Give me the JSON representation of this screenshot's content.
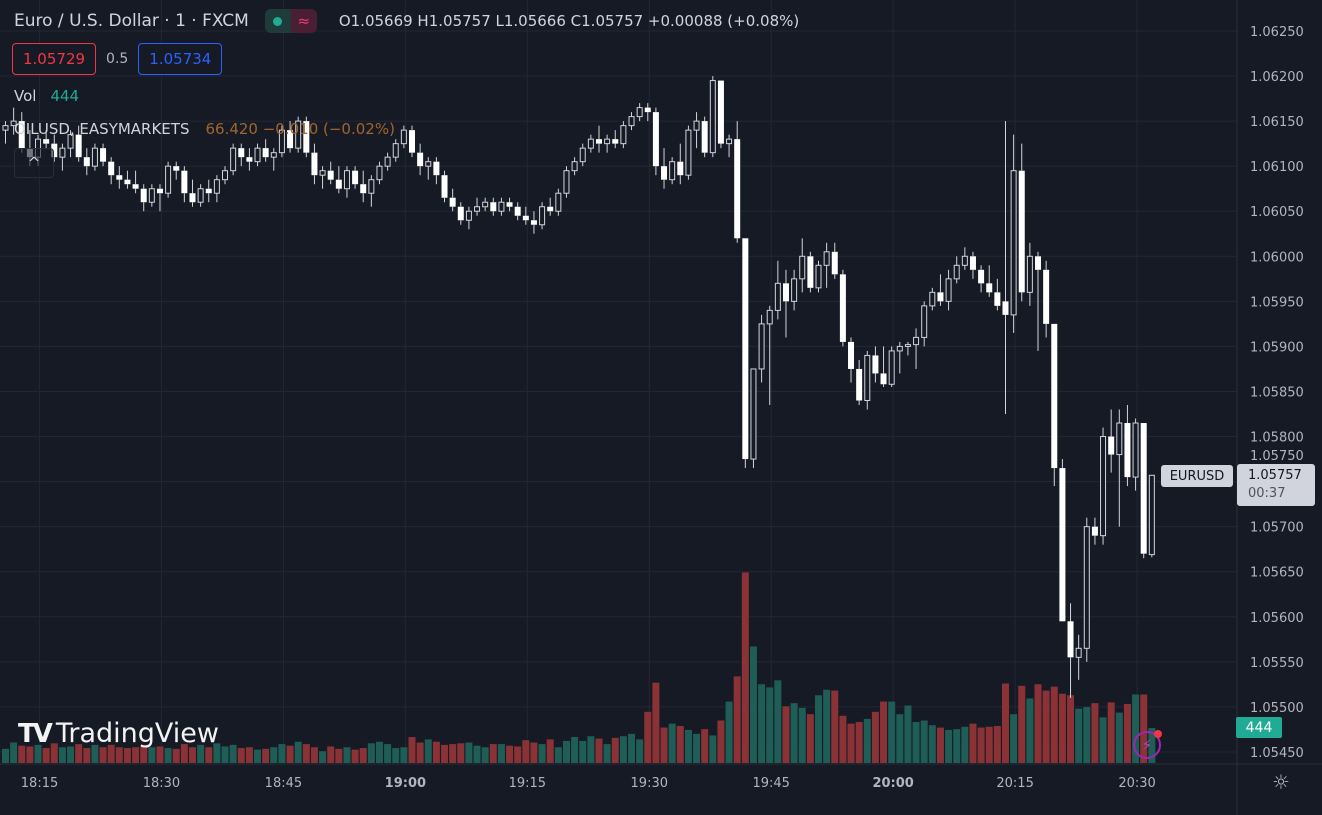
{
  "header": {
    "title": "Euro / U.S. Dollar · 1 · FXCM",
    "status_wave": "≈",
    "ohlc": "O1.05669 H1.05757 L1.05666 C1.05757 +0.00088 (+0.08%)"
  },
  "trade": {
    "sell_price": "1.05729",
    "spread": "0.5",
    "buy_price": "1.05734"
  },
  "volume_legend": {
    "label": "Vol",
    "value": "444"
  },
  "overlay_symbol": {
    "name": "OILUSD, EASYMARKETS",
    "quote": "66.420 −0.010 (−0.02%)"
  },
  "collapse_icon": "^",
  "watermark": {
    "logo": "17",
    "text": "TradingView"
  },
  "price_tag": {
    "symbol": "EURUSD",
    "price": "1.05757",
    "countdown": "00:37"
  },
  "volume_tag": "444",
  "colors": {
    "background": "#161a25",
    "up_volume": "#1f5d57",
    "down_volume": "#8a3236",
    "candle": "#ffffff",
    "accent_teal": "#22ab94"
  },
  "chart_data": {
    "type": "candlestick",
    "title": "Euro / U.S. Dollar · 1 · FXCM",
    "interval_minutes": 1,
    "start_time": "18:11",
    "ylim": [
      1.0543,
      1.0627
    ],
    "price_ticks": [
      "1.06250",
      "1.06200",
      "1.06150",
      "1.06100",
      "1.06050",
      "1.06000",
      "1.05950",
      "1.05900",
      "1.05850",
      "1.05800",
      "1.05750",
      "1.05700",
      "1.05650",
      "1.05600",
      "1.05550",
      "1.05500",
      "1.05450"
    ],
    "time_ticks": [
      {
        "label": "18:15",
        "index": 4,
        "bold": false
      },
      {
        "label": "18:30",
        "index": 19,
        "bold": false
      },
      {
        "label": "18:45",
        "index": 34,
        "bold": false
      },
      {
        "label": "19:00",
        "index": 49,
        "bold": true
      },
      {
        "label": "19:15",
        "index": 64,
        "bold": false
      },
      {
        "label": "19:30",
        "index": 79,
        "bold": false
      },
      {
        "label": "19:45",
        "index": 94,
        "bold": false
      },
      {
        "label": "20:00",
        "index": 109,
        "bold": true
      },
      {
        "label": "20:15",
        "index": 124,
        "bold": false
      },
      {
        "label": "20:30",
        "index": 139,
        "bold": false
      }
    ],
    "candle_fields": [
      "open",
      "high",
      "low",
      "close",
      "volume"
    ],
    "candles": [
      [
        1.0614,
        1.0615,
        1.06125,
        1.06145,
        180
      ],
      [
        1.06145,
        1.06165,
        1.06135,
        1.0615,
        260
      ],
      [
        1.0615,
        1.0616,
        1.06115,
        1.0612,
        220
      ],
      [
        1.0612,
        1.0614,
        1.061,
        1.0611,
        210
      ],
      [
        1.0611,
        1.06135,
        1.061,
        1.0613,
        230
      ],
      [
        1.0613,
        1.0614,
        1.0612,
        1.06125,
        190
      ],
      [
        1.06125,
        1.06135,
        1.06105,
        1.0611,
        250
      ],
      [
        1.0611,
        1.06125,
        1.06095,
        1.0612,
        200
      ],
      [
        1.0612,
        1.0614,
        1.0611,
        1.06135,
        210
      ],
      [
        1.06135,
        1.06145,
        1.06105,
        1.0611,
        240
      ],
      [
        1.0611,
        1.0612,
        1.0609,
        1.061,
        190
      ],
      [
        1.061,
        1.06125,
        1.06095,
        1.0612,
        230
      ],
      [
        1.0612,
        1.06125,
        1.061,
        1.06105,
        200
      ],
      [
        1.06105,
        1.0611,
        1.0608,
        1.0609,
        230
      ],
      [
        1.0609,
        1.061,
        1.06075,
        1.06085,
        200
      ],
      [
        1.06085,
        1.06095,
        1.06075,
        1.0608,
        190
      ],
      [
        1.0608,
        1.06095,
        1.0607,
        1.06075,
        200
      ],
      [
        1.06075,
        1.0608,
        1.0605,
        1.0606,
        230
      ],
      [
        1.0606,
        1.0608,
        1.06055,
        1.06075,
        200
      ],
      [
        1.06075,
        1.0608,
        1.0605,
        1.0607,
        210
      ],
      [
        1.0607,
        1.06105,
        1.06065,
        1.061,
        190
      ],
      [
        1.061,
        1.06105,
        1.06085,
        1.06095,
        180
      ],
      [
        1.06095,
        1.061,
        1.0606,
        1.0607,
        240
      ],
      [
        1.0607,
        1.06085,
        1.06055,
        1.0606,
        200
      ],
      [
        1.0606,
        1.0608,
        1.06055,
        1.06075,
        230
      ],
      [
        1.06075,
        1.06085,
        1.0606,
        1.0607,
        200
      ],
      [
        1.0607,
        1.0609,
        1.0606,
        1.06085,
        250
      ],
      [
        1.06085,
        1.061,
        1.0608,
        1.06095,
        210
      ],
      [
        1.06095,
        1.06125,
        1.0609,
        1.0612,
        230
      ],
      [
        1.0612,
        1.06125,
        1.061,
        1.0611,
        190
      ],
      [
        1.0611,
        1.0612,
        1.06095,
        1.06105,
        200
      ],
      [
        1.06105,
        1.06125,
        1.061,
        1.0612,
        170
      ],
      [
        1.0612,
        1.0613,
        1.06105,
        1.0611,
        180
      ],
      [
        1.0611,
        1.0612,
        1.06095,
        1.06115,
        200
      ],
      [
        1.06115,
        1.06145,
        1.0611,
        1.0614,
        240
      ],
      [
        1.0614,
        1.0615,
        1.06115,
        1.0612,
        220
      ],
      [
        1.0612,
        1.06155,
        1.06115,
        1.0615,
        270
      ],
      [
        1.0615,
        1.06155,
        1.0611,
        1.06115,
        240
      ],
      [
        1.06115,
        1.06125,
        1.0608,
        1.0609,
        200
      ],
      [
        1.0609,
        1.061,
        1.06075,
        1.06095,
        150
      ],
      [
        1.06095,
        1.06105,
        1.0608,
        1.06085,
        210
      ],
      [
        1.06085,
        1.061,
        1.0607,
        1.06075,
        180
      ],
      [
        1.06075,
        1.061,
        1.06065,
        1.06095,
        200
      ],
      [
        1.06095,
        1.061,
        1.06075,
        1.0608,
        170
      ],
      [
        1.0608,
        1.06095,
        1.0606,
        1.0607,
        190
      ],
      [
        1.0607,
        1.0609,
        1.06055,
        1.06085,
        250
      ],
      [
        1.06085,
        1.06105,
        1.0608,
        1.061,
        270
      ],
      [
        1.061,
        1.06115,
        1.06095,
        1.0611,
        240
      ],
      [
        1.0611,
        1.0613,
        1.06105,
        1.06125,
        190
      ],
      [
        1.06125,
        1.06145,
        1.0612,
        1.0614,
        200
      ],
      [
        1.0614,
        1.06145,
        1.0611,
        1.06115,
        330
      ],
      [
        1.06115,
        1.06125,
        1.0609,
        1.061,
        260
      ],
      [
        1.061,
        1.0611,
        1.06085,
        1.06105,
        300
      ],
      [
        1.06105,
        1.0611,
        1.0608,
        1.0609,
        270
      ],
      [
        1.0609,
        1.06095,
        1.0606,
        1.06065,
        230
      ],
      [
        1.06065,
        1.06075,
        1.0605,
        1.06055,
        240
      ],
      [
        1.06055,
        1.0606,
        1.06035,
        1.0604,
        250
      ],
      [
        1.0604,
        1.06055,
        1.0603,
        1.0605,
        260
      ],
      [
        1.0605,
        1.06065,
        1.06045,
        1.06055,
        220
      ],
      [
        1.06055,
        1.06065,
        1.0605,
        1.0606,
        200
      ],
      [
        1.0606,
        1.06065,
        1.06045,
        1.0605,
        240
      ],
      [
        1.0605,
        1.06065,
        1.06045,
        1.0606,
        240
      ],
      [
        1.0606,
        1.06065,
        1.0605,
        1.06055,
        220
      ],
      [
        1.06055,
        1.0606,
        1.0604,
        1.06045,
        210
      ],
      [
        1.06045,
        1.06055,
        1.06035,
        1.0604,
        290
      ],
      [
        1.0604,
        1.0605,
        1.06025,
        1.06035,
        260
      ],
      [
        1.06035,
        1.0606,
        1.0603,
        1.06055,
        240
      ],
      [
        1.06055,
        1.06065,
        1.06045,
        1.0605,
        300
      ],
      [
        1.0605,
        1.06075,
        1.06045,
        1.0607,
        200
      ],
      [
        1.0607,
        1.061,
        1.06065,
        1.06095,
        280
      ],
      [
        1.06095,
        1.0611,
        1.0609,
        1.06105,
        330
      ],
      [
        1.06105,
        1.06125,
        1.061,
        1.0612,
        280
      ],
      [
        1.0612,
        1.06135,
        1.06115,
        1.0613,
        340
      ],
      [
        1.0613,
        1.06145,
        1.06115,
        1.06125,
        310
      ],
      [
        1.06125,
        1.06135,
        1.06115,
        1.0613,
        240
      ],
      [
        1.0613,
        1.0614,
        1.0612,
        1.06125,
        320
      ],
      [
        1.06125,
        1.0615,
        1.0612,
        1.06145,
        340
      ],
      [
        1.06145,
        1.0616,
        1.0614,
        1.06155,
        370
      ],
      [
        1.06155,
        1.0617,
        1.0615,
        1.06165,
        300
      ],
      [
        1.06165,
        1.0617,
        1.0615,
        1.0616,
        650
      ],
      [
        1.0616,
        1.06165,
        1.0609,
        1.061,
        1020
      ],
      [
        1.061,
        1.0612,
        1.06075,
        1.06085,
        450
      ],
      [
        1.06085,
        1.0611,
        1.0608,
        1.06105,
        500
      ],
      [
        1.06105,
        1.06125,
        1.0608,
        1.0609,
        470
      ],
      [
        1.0609,
        1.06145,
        1.06085,
        1.0614,
        420
      ],
      [
        1.0614,
        1.0616,
        1.0612,
        1.0615,
        370
      ],
      [
        1.0615,
        1.06155,
        1.0611,
        1.06115,
        430
      ],
      [
        1.06115,
        1.062,
        1.0611,
        1.06195,
        350
      ],
      [
        1.06195,
        1.06195,
        1.0612,
        1.06125,
        540
      ],
      [
        1.06125,
        1.06135,
        1.0611,
        1.0613,
        780
      ],
      [
        1.0613,
        1.0615,
        1.06015,
        1.0602,
        1100
      ],
      [
        1.0602,
        1.0602,
        1.05765,
        1.05775,
        2420
      ],
      [
        1.05775,
        1.05875,
        1.05765,
        1.05875,
        1480
      ],
      [
        1.05875,
        1.05935,
        1.0586,
        1.05925,
        1000
      ],
      [
        1.05925,
        1.05945,
        1.05835,
        1.0594,
        960
      ],
      [
        1.0594,
        1.05995,
        1.0593,
        1.0597,
        1050
      ],
      [
        1.0597,
        1.05985,
        1.0591,
        1.0595,
        720
      ],
      [
        1.0595,
        1.05985,
        1.0594,
        1.05975,
        760
      ],
      [
        1.05975,
        1.0602,
        1.0596,
        1.06,
        700
      ],
      [
        1.06,
        1.06005,
        1.0596,
        1.05965,
        620
      ],
      [
        1.05965,
        1.05995,
        1.0596,
        1.0599,
        860
      ],
      [
        1.0599,
        1.06015,
        1.05965,
        1.06005,
        930
      ],
      [
        1.06005,
        1.06015,
        1.05975,
        1.0598,
        920
      ],
      [
        1.0598,
        1.05985,
        1.059,
        1.05905,
        600
      ],
      [
        1.05905,
        1.0591,
        1.0586,
        1.05875,
        500
      ],
      [
        1.05875,
        1.05885,
        1.05835,
        1.0584,
        520
      ],
      [
        1.0584,
        1.05895,
        1.0583,
        1.0589,
        560
      ],
      [
        1.0589,
        1.059,
        1.0586,
        1.0587,
        650
      ],
      [
        1.0587,
        1.059,
        1.05855,
        1.05858,
        780
      ],
      [
        1.05858,
        1.059,
        1.05855,
        1.05895,
        780
      ],
      [
        1.05895,
        1.05905,
        1.0587,
        1.059,
        620
      ],
      [
        1.059,
        1.05905,
        1.0589,
        1.05902,
        730
      ],
      [
        1.05902,
        1.0592,
        1.05875,
        1.0591,
        520
      ],
      [
        1.0591,
        1.0595,
        1.059,
        1.05945,
        540
      ],
      [
        1.05945,
        1.05965,
        1.0594,
        1.0596,
        480
      ],
      [
        1.0596,
        1.0598,
        1.05945,
        1.0595,
        450
      ],
      [
        1.0595,
        1.05985,
        1.0594,
        1.05975,
        420
      ],
      [
        1.05975,
        1.06,
        1.0597,
        1.0599,
        430
      ],
      [
        1.0599,
        1.0601,
        1.05985,
        1.06,
        460
      ],
      [
        1.06,
        1.06005,
        1.05975,
        1.05985,
        500
      ],
      [
        1.05985,
        1.0599,
        1.0596,
        1.0597,
        450
      ],
      [
        1.0597,
        1.0599,
        1.05955,
        1.0596,
        460
      ],
      [
        1.0596,
        1.05975,
        1.0594,
        1.05945,
        470
      ],
      [
        1.0595,
        1.0615,
        1.05825,
        1.05935,
        1010
      ],
      [
        1.05935,
        1.06135,
        1.05915,
        1.06095,
        620
      ],
      [
        1.06095,
        1.06125,
        1.0595,
        1.0596,
        980
      ],
      [
        1.0596,
        1.06015,
        1.05945,
        1.06,
        820
      ],
      [
        1.06,
        1.06005,
        1.05895,
        1.05985,
        1000
      ],
      [
        1.05985,
        1.05995,
        1.0591,
        1.05925,
        920
      ],
      [
        1.05925,
        1.05925,
        1.05745,
        1.05765,
        970
      ],
      [
        1.05765,
        1.05775,
        1.056,
        1.05595,
        880
      ],
      [
        1.05595,
        1.05615,
        1.0551,
        1.05555,
        860
      ],
      [
        1.05555,
        1.0558,
        1.0553,
        1.05565,
        690
      ],
      [
        1.05565,
        1.0571,
        1.0555,
        1.057,
        710
      ],
      [
        1.057,
        1.0571,
        1.0568,
        1.0569,
        760
      ],
      [
        1.0569,
        1.0581,
        1.0568,
        1.058,
        580
      ],
      [
        1.058,
        1.0583,
        1.0576,
        1.0578,
        770
      ],
      [
        1.0578,
        1.0583,
        1.057,
        1.05815,
        640
      ],
      [
        1.05815,
        1.05835,
        1.05745,
        1.05755,
        750
      ],
      [
        1.05755,
        1.0582,
        1.0574,
        1.05815,
        870
      ],
      [
        1.05815,
        1.05815,
        1.05665,
        1.0567,
        870
      ],
      [
        1.05669,
        1.05757,
        1.05666,
        1.05757,
        444
      ]
    ]
  }
}
